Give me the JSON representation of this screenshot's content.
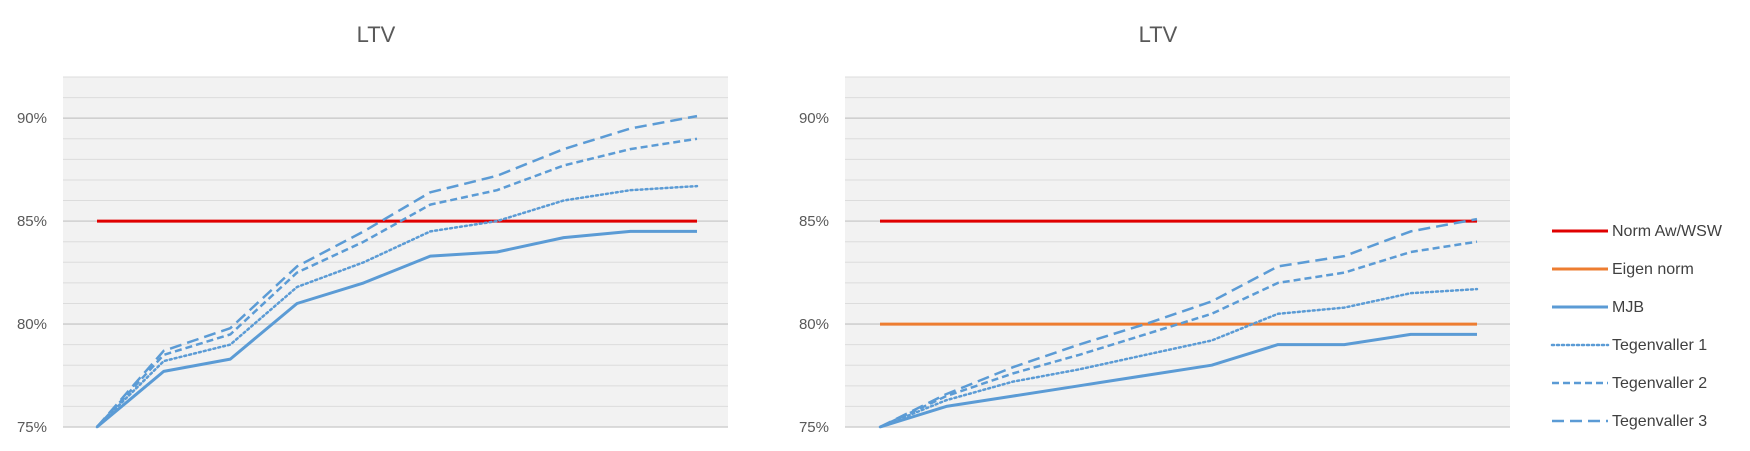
{
  "chart_data": [
    {
      "type": "line",
      "title": "LTV",
      "x": [
        0,
        1,
        2,
        3,
        4,
        5,
        6,
        7,
        8,
        9
      ],
      "ylim": [
        0.75,
        0.92
      ],
      "yticks": [
        "75%",
        "80%",
        "85%",
        "90%"
      ],
      "grid": true,
      "series": [
        {
          "name": "Norm Aw/WSW",
          "color": "#e00000",
          "style": "solid",
          "values": [
            0.85,
            0.85,
            0.85,
            0.85,
            0.85,
            0.85,
            0.85,
            0.85,
            0.85,
            0.85
          ]
        },
        {
          "name": "MJB",
          "color": "#5b9bd5",
          "style": "solid",
          "values": [
            0.75,
            0.777,
            0.783,
            0.81,
            0.82,
            0.833,
            0.835,
            0.842,
            0.845,
            0.845
          ]
        },
        {
          "name": "Tegenvaller 1",
          "color": "#5b9bd5",
          "style": "dotted",
          "values": [
            0.75,
            0.782,
            0.79,
            0.818,
            0.83,
            0.845,
            0.85,
            0.86,
            0.865,
            0.867
          ]
        },
        {
          "name": "Tegenvaller 2",
          "color": "#5b9bd5",
          "style": "dashed",
          "values": [
            0.75,
            0.785,
            0.795,
            0.825,
            0.84,
            0.858,
            0.865,
            0.877,
            0.885,
            0.89
          ]
        },
        {
          "name": "Tegenvaller 3",
          "color": "#5b9bd5",
          "style": "longdash",
          "values": [
            0.75,
            0.787,
            0.798,
            0.828,
            0.845,
            0.864,
            0.872,
            0.885,
            0.895,
            0.901
          ]
        }
      ]
    },
    {
      "type": "line",
      "title": "LTV",
      "x": [
        0,
        1,
        2,
        3,
        4,
        5,
        6,
        7,
        8,
        9
      ],
      "ylim": [
        0.75,
        0.92
      ],
      "yticks": [
        "75%",
        "80%",
        "85%",
        "90%"
      ],
      "grid": true,
      "legend": "right",
      "series": [
        {
          "name": "Norm Aw/WSW",
          "color": "#e00000",
          "style": "solid",
          "values": [
            0.85,
            0.85,
            0.85,
            0.85,
            0.85,
            0.85,
            0.85,
            0.85,
            0.85,
            0.85
          ]
        },
        {
          "name": "Eigen norm",
          "color": "#ed7d31",
          "style": "solid",
          "values": [
            0.8,
            0.8,
            0.8,
            0.8,
            0.8,
            0.8,
            0.8,
            0.8,
            0.8,
            0.8
          ]
        },
        {
          "name": "MJB",
          "color": "#5b9bd5",
          "style": "solid",
          "values": [
            0.75,
            0.76,
            0.765,
            0.77,
            0.775,
            0.78,
            0.79,
            0.79,
            0.795,
            0.795
          ]
        },
        {
          "name": "Tegenvaller 1",
          "color": "#5b9bd5",
          "style": "dotted",
          "values": [
            0.75,
            0.763,
            0.772,
            0.778,
            0.785,
            0.792,
            0.805,
            0.808,
            0.815,
            0.817
          ]
        },
        {
          "name": "Tegenvaller 2",
          "color": "#5b9bd5",
          "style": "dashed",
          "values": [
            0.75,
            0.765,
            0.776,
            0.785,
            0.795,
            0.805,
            0.82,
            0.825,
            0.835,
            0.84
          ]
        },
        {
          "name": "Tegenvaller 3",
          "color": "#5b9bd5",
          "style": "longdash",
          "values": [
            0.75,
            0.766,
            0.779,
            0.79,
            0.8,
            0.811,
            0.828,
            0.833,
            0.845,
            0.851
          ]
        }
      ]
    }
  ],
  "legend": {
    "items": [
      {
        "name": "Norm Aw/WSW",
        "color": "#e00000",
        "style": "solid"
      },
      {
        "name": "Eigen norm",
        "color": "#ed7d31",
        "style": "solid"
      },
      {
        "name": "MJB",
        "color": "#5b9bd5",
        "style": "solid"
      },
      {
        "name": "Tegenvaller 1",
        "color": "#5b9bd5",
        "style": "dotted"
      },
      {
        "name": "Tegenvaller 2",
        "color": "#5b9bd5",
        "style": "dashed"
      },
      {
        "name": "Tegenvaller 3",
        "color": "#5b9bd5",
        "style": "longdash"
      }
    ]
  }
}
